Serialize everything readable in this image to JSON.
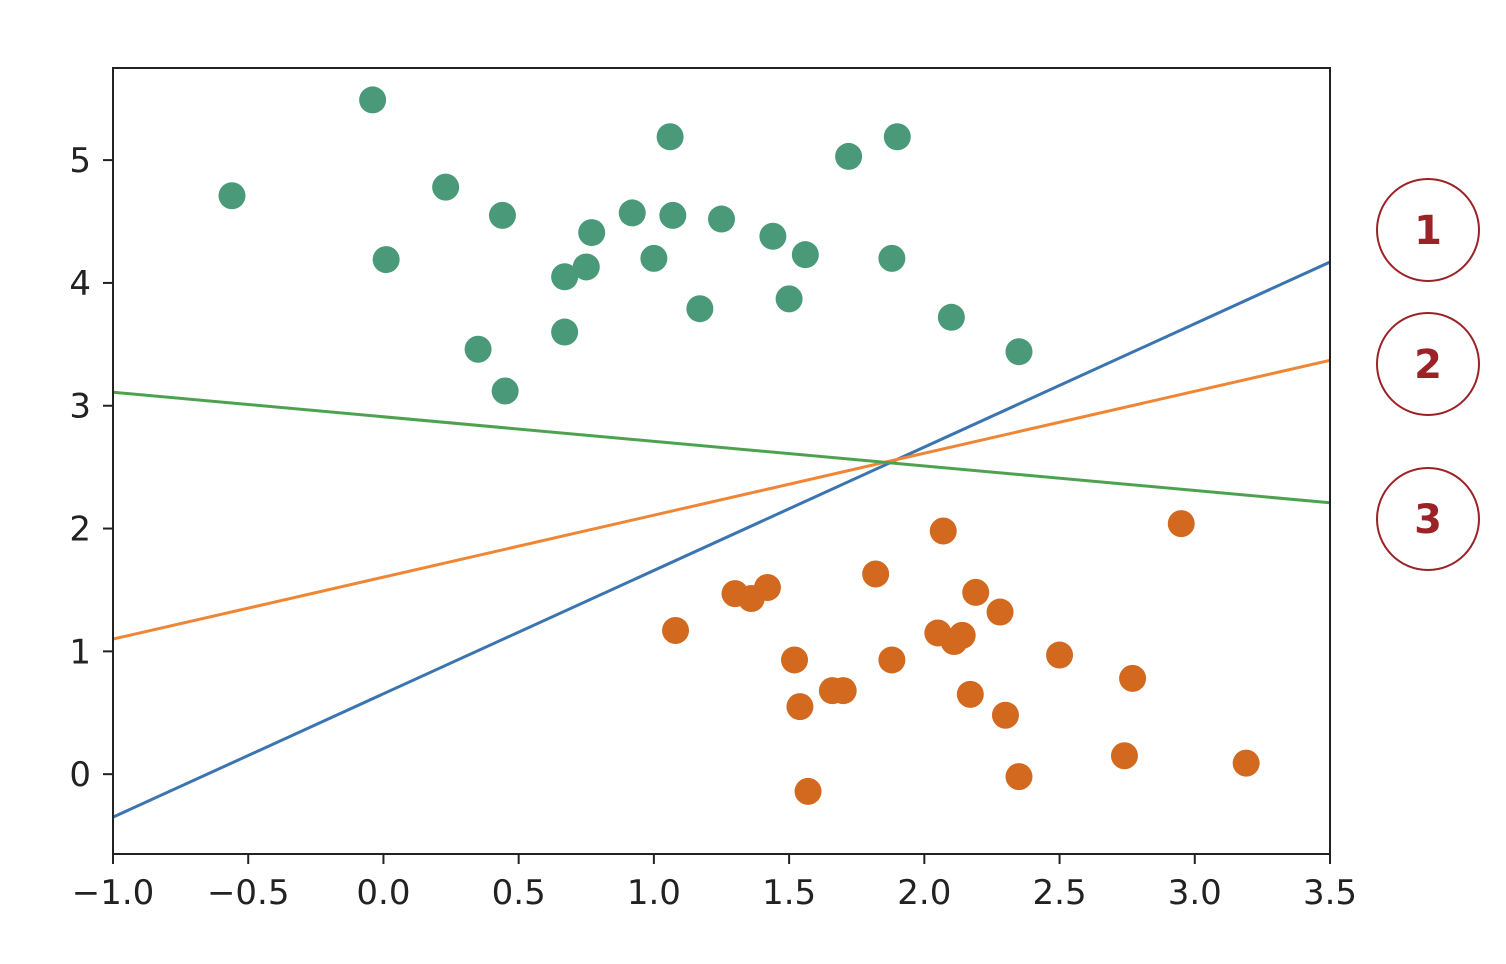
{
  "chart_data": {
    "type": "scatter",
    "xlim": [
      -1.0,
      3.5
    ],
    "ylim": [
      -0.65,
      5.75
    ],
    "x_ticks": [
      -1.0,
      -0.5,
      0.0,
      0.5,
      1.0,
      1.5,
      2.0,
      2.5,
      3.0,
      3.5
    ],
    "x_tick_labels": [
      "−1.0",
      "−0.5",
      "0.0",
      "0.5",
      "1.0",
      "1.5",
      "2.0",
      "2.5",
      "3.0",
      "3.5"
    ],
    "y_ticks": [
      0,
      1,
      2,
      3,
      4,
      5
    ],
    "y_tick_labels": [
      "0",
      "1",
      "2",
      "3",
      "4",
      "5"
    ],
    "grid": false,
    "title": "",
    "xlabel": "",
    "ylabel": "",
    "series": [
      {
        "type": "scatter",
        "color": "#4a9a7a",
        "points": [
          [
            -0.56,
            4.71
          ],
          [
            -0.04,
            5.49
          ],
          [
            0.01,
            4.19
          ],
          [
            0.23,
            4.78
          ],
          [
            0.35,
            3.46
          ],
          [
            0.45,
            3.12
          ],
          [
            0.44,
            4.55
          ],
          [
            0.67,
            4.05
          ],
          [
            0.67,
            3.6
          ],
          [
            0.75,
            4.13
          ],
          [
            0.77,
            4.41
          ],
          [
            0.92,
            4.57
          ],
          [
            1.0,
            4.2
          ],
          [
            1.06,
            5.19
          ],
          [
            1.07,
            4.55
          ],
          [
            1.17,
            3.79
          ],
          [
            1.25,
            4.52
          ],
          [
            1.44,
            4.38
          ],
          [
            1.5,
            3.87
          ],
          [
            1.56,
            4.23
          ],
          [
            1.72,
            5.03
          ],
          [
            1.88,
            4.2
          ],
          [
            1.9,
            5.19
          ],
          [
            2.1,
            3.72
          ],
          [
            2.35,
            3.44
          ]
        ]
      },
      {
        "type": "scatter",
        "color": "#d2691e",
        "points": [
          [
            1.08,
            1.17
          ],
          [
            1.3,
            1.47
          ],
          [
            1.36,
            1.43
          ],
          [
            1.42,
            1.52
          ],
          [
            1.52,
            0.93
          ],
          [
            1.54,
            0.55
          ],
          [
            1.57,
            -0.14
          ],
          [
            1.66,
            0.68
          ],
          [
            1.7,
            0.68
          ],
          [
            1.82,
            1.63
          ],
          [
            1.88,
            0.93
          ],
          [
            2.05,
            1.15
          ],
          [
            2.07,
            1.98
          ],
          [
            2.11,
            1.08
          ],
          [
            2.14,
            1.13
          ],
          [
            2.17,
            0.65
          ],
          [
            2.19,
            1.48
          ],
          [
            2.28,
            1.32
          ],
          [
            2.3,
            0.48
          ],
          [
            2.35,
            -0.02
          ],
          [
            2.5,
            0.97
          ],
          [
            2.74,
            0.15
          ],
          [
            2.77,
            0.78
          ],
          [
            2.95,
            2.04
          ],
          [
            3.19,
            0.09
          ]
        ]
      },
      {
        "type": "line",
        "color": "#3b75af",
        "points": [
          [
            -1.0,
            -0.35
          ],
          [
            3.5,
            4.17
          ]
        ]
      },
      {
        "type": "line",
        "color": "#ef8636",
        "points": [
          [
            -1.0,
            1.1
          ],
          [
            3.5,
            3.37
          ]
        ]
      },
      {
        "type": "line",
        "color": "#50a14f",
        "points": [
          [
            -1.0,
            3.11
          ],
          [
            3.5,
            2.21
          ]
        ]
      }
    ]
  },
  "badges": [
    {
      "label": "1",
      "color": "#9b2226"
    },
    {
      "label": "2",
      "color": "#9b2226"
    },
    {
      "label": "3",
      "color": "#9b2226"
    }
  ]
}
